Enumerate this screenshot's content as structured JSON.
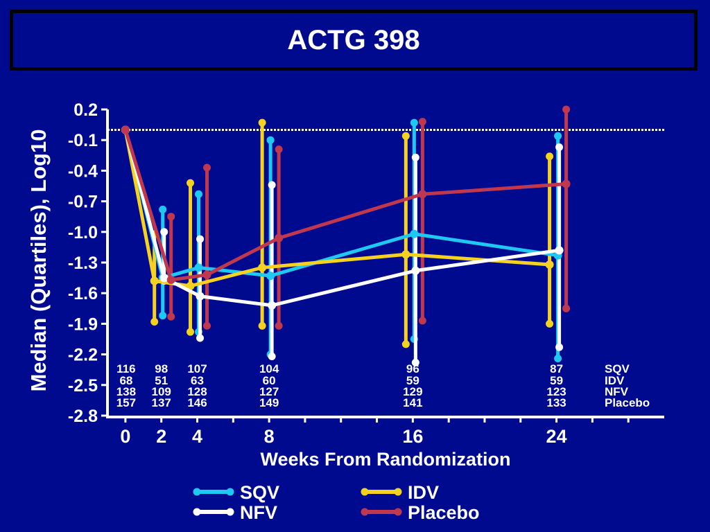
{
  "header": {
    "title": "ACTG 398"
  },
  "colors": {
    "background": "#000a8f",
    "axis": "#ffffff",
    "reference": "#ffffff"
  },
  "chart_data": {
    "type": "line",
    "title": "ACTG 398",
    "xlabel": "Weeks From Randomization",
    "ylabel": "Median (Quartiles), Log10",
    "x_ticks": [
      0,
      2,
      4,
      8,
      16,
      24
    ],
    "xlim": [
      -1,
      30
    ],
    "y_ticks": [
      0.2,
      -0.1,
      -0.4,
      -0.7,
      -1.0,
      -1.3,
      -1.6,
      -1.9,
      -2.2,
      -2.5,
      -2.8
    ],
    "y_tick_labels": [
      "0.2",
      "-0.1",
      "-0.4",
      "-0.7",
      "-1.0",
      "-1.3",
      "-1.6",
      "-1.9",
      "-2.2",
      "-2.5",
      "-2.8"
    ],
    "ylim": [
      -2.8,
      0.2
    ],
    "reference_line_y": 0.0,
    "series": [
      {
        "name": "SQV",
        "color": "#1ec8f0",
        "x": [
          0,
          2,
          4,
          8,
          16,
          24
        ],
        "median": [
          0.0,
          -1.45,
          -1.35,
          -1.43,
          -1.02,
          -1.23
        ],
        "q1": [
          0.0,
          -1.82,
          -1.98,
          -2.2,
          -2.05,
          -2.24
        ],
        "q3": [
          0.0,
          -0.78,
          -0.63,
          -0.1,
          0.07,
          -0.06
        ],
        "counts": [
          "116",
          "98",
          "107",
          "104",
          "96",
          "87"
        ]
      },
      {
        "name": "IDV",
        "color": "#f5d220",
        "x": [
          0,
          2,
          4,
          8,
          16,
          24
        ],
        "median": [
          0.0,
          -1.48,
          -1.53,
          -1.35,
          -1.22,
          -1.32
        ],
        "q1": [
          0.0,
          -1.88,
          -1.98,
          -1.92,
          -2.1,
          -1.9
        ],
        "q3": [
          0.0,
          -1.02,
          -0.52,
          0.07,
          -0.06,
          -0.26
        ],
        "counts": [
          "68",
          "51",
          "63",
          "60",
          "59",
          "59"
        ]
      },
      {
        "name": "NFV",
        "color": "#ffffff",
        "x": [
          0,
          2,
          4,
          8,
          16,
          24
        ],
        "median": [
          0.0,
          -1.45,
          -1.63,
          -1.72,
          -1.38,
          -1.18
        ],
        "q1": [
          0.0,
          -1.48,
          -2.04,
          -2.22,
          -2.28,
          -2.13
        ],
        "q3": [
          0.0,
          -1.0,
          -1.07,
          -0.54,
          -0.27,
          -0.17
        ],
        "counts": [
          "138",
          "109",
          "128",
          "127",
          "129",
          "123"
        ]
      },
      {
        "name": "Placebo",
        "color": "#c0384e",
        "x": [
          0,
          2,
          4,
          8,
          16,
          24
        ],
        "median": [
          0.0,
          -1.47,
          -1.42,
          -1.06,
          -0.63,
          -0.53
        ],
        "q1": [
          0.0,
          -1.83,
          -1.92,
          -1.92,
          -1.87,
          -1.75
        ],
        "q3": [
          0.0,
          -0.85,
          -0.37,
          -0.19,
          0.08,
          0.2
        ],
        "counts": [
          "157",
          "137",
          "146",
          "149",
          "141",
          "133"
        ]
      }
    ],
    "legend": {
      "placement": "bottom",
      "entries": [
        "SQV",
        "IDV",
        "NFV",
        "Placebo"
      ]
    }
  }
}
